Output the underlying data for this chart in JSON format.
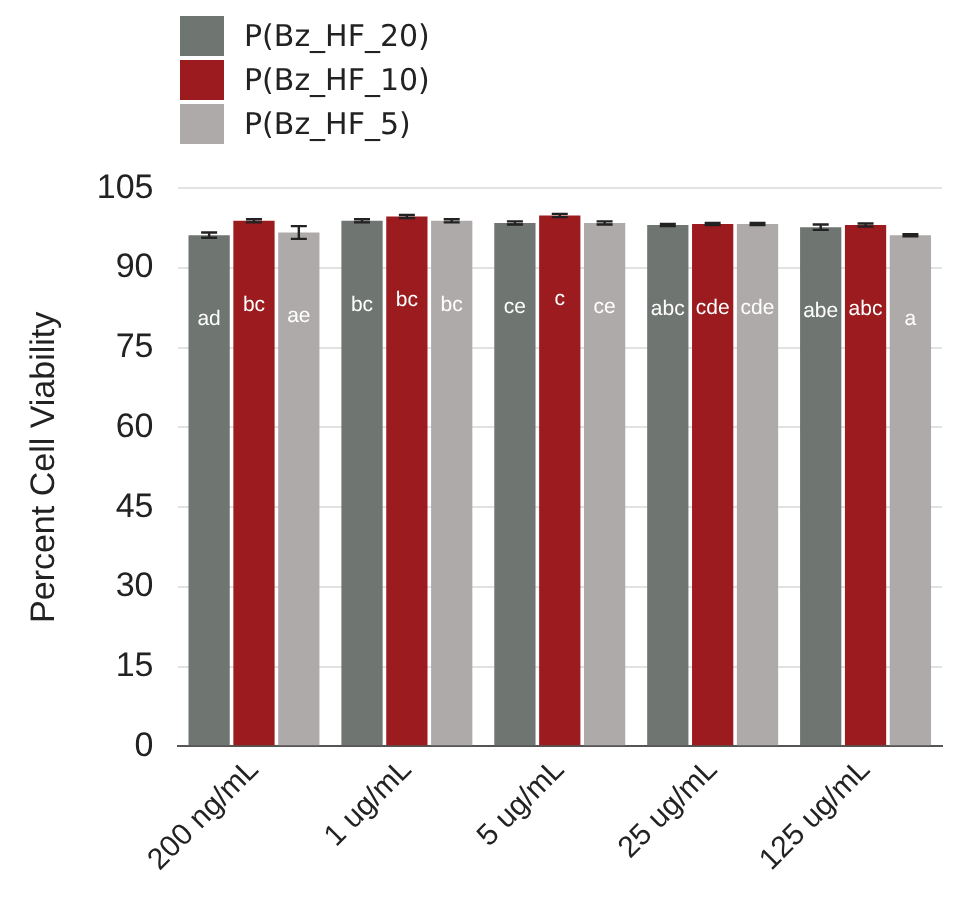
{
  "chart_data": {
    "type": "bar",
    "ylabel": "Percent Cell Viability",
    "categories": [
      "200 ng/mL",
      "1 ug/mL",
      "5 ug/mL",
      "25 ug/mL",
      "125 ug/mL"
    ],
    "series": [
      {
        "name": "P(Bz_HF_20)",
        "color": "#6f7570",
        "values": [
          96.2,
          98.9,
          98.5,
          98.1,
          97.7
        ],
        "errors": [
          0.5,
          0.3,
          0.3,
          0.2,
          0.5
        ],
        "value_labels": [
          "ad",
          "bc",
          "ce",
          "abc",
          "abe"
        ]
      },
      {
        "name": "P(Bz_HF_10)",
        "color": "#9b1b1e",
        "values": [
          98.9,
          99.7,
          99.9,
          98.3,
          98.1
        ],
        "errors": [
          0.3,
          0.3,
          0.3,
          0.2,
          0.3
        ],
        "value_labels": [
          "bc",
          "bc",
          "c",
          "cde",
          "abc"
        ]
      },
      {
        "name": "P(Bz_HF_5)",
        "color": "#aeaaa9",
        "values": [
          96.7,
          98.9,
          98.5,
          98.3,
          96.2
        ],
        "errors": [
          1.2,
          0.3,
          0.3,
          0.2,
          0.2
        ],
        "value_labels": [
          "ae",
          "bc",
          "ce",
          "cde",
          "a"
        ]
      }
    ],
    "ylim": [
      0,
      105
    ],
    "yticks": [
      0,
      15,
      30,
      45,
      60,
      75,
      90,
      105
    ],
    "grid": "y",
    "legend": "top left"
  }
}
